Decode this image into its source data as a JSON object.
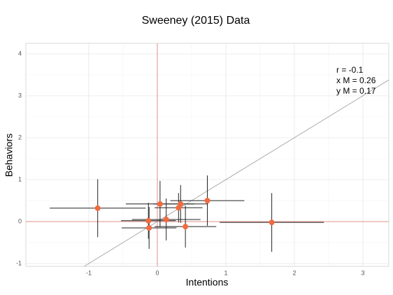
{
  "chart_data": {
    "type": "scatter",
    "title": "Sweeney (2015) Data",
    "x_label": "Intentions",
    "y_label": "Behaviors",
    "x": [
      -0.87,
      -0.13,
      -0.12,
      0.04,
      0.13,
      0.34,
      0.31,
      0.41,
      0.73,
      1.67
    ],
    "values": [
      0.32,
      0.02,
      -0.15,
      0.42,
      0.05,
      0.42,
      0.33,
      -0.12,
      0.5,
      -0.02
    ],
    "xerr": [
      0.7,
      0.4,
      0.4,
      0.5,
      0.5,
      0.4,
      0.35,
      0.45,
      0.54,
      0.76
    ],
    "yerr": [
      0.69,
      0.43,
      0.5,
      0.55,
      0.5,
      0.45,
      0.35,
      0.5,
      0.6,
      0.7
    ],
    "color": "#f26a3f",
    "error_color": "#222222",
    "xlim": [
      -1.918,
      3.378
    ],
    "ylim": [
      -1.067,
      4.25
    ],
    "xticks": [
      -1,
      0,
      1,
      2,
      3
    ],
    "yticks": [
      -1,
      0,
      1,
      2,
      3,
      4
    ],
    "grid": true,
    "zero_lines": true,
    "zero_line_color": "#e0908a",
    "identity_line": true,
    "identity_line_color": "#aaaaaa",
    "annotations": [
      "r = -0.1",
      "x M = 0.26",
      "y M = 0.17"
    ]
  }
}
